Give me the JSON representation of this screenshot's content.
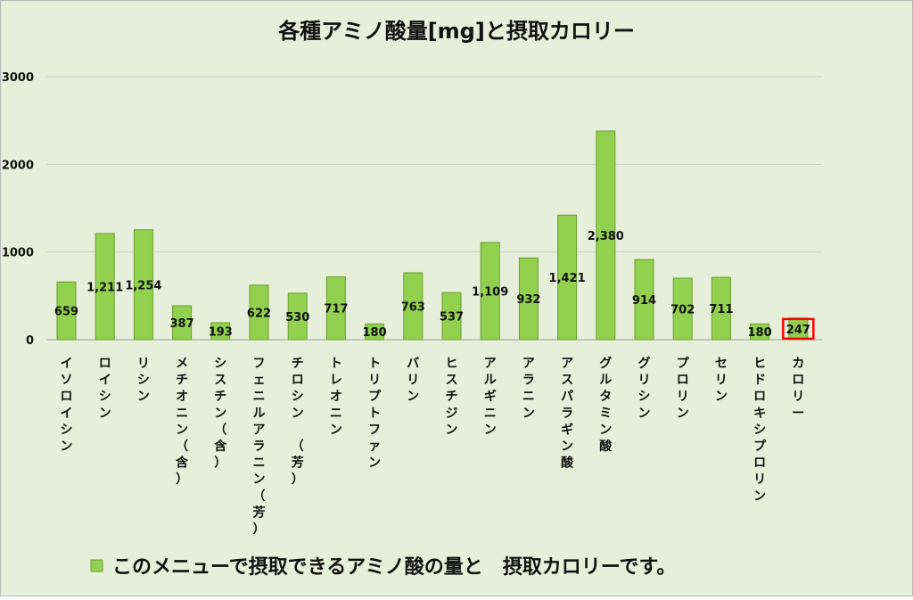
{
  "chart_data": {
    "type": "bar",
    "title": "各種アミノ酸量[mg]と摂取カロリー",
    "categories": [
      "イソロイシン",
      "ロイシン",
      "リシン",
      "メチオニン（含）",
      "シスチン（含）",
      "フェニルアラニン（芳）",
      "チロシン　（芳）",
      "トレオニン",
      "トリプトファン",
      "バリン",
      "ヒスチジン",
      "アルギニン",
      "アラニン",
      "アスパラギン酸",
      "グルタミン酸",
      "グリシン",
      "プロリン",
      "セリン",
      "ヒドロキシプロリン",
      "カロリー"
    ],
    "values": [
      659,
      1211,
      1254,
      387,
      193,
      622,
      530,
      717,
      180,
      763,
      537,
      1109,
      932,
      1421,
      2380,
      914,
      702,
      711,
      180,
      247
    ],
    "data_labels": [
      "659",
      "1,211",
      "1,254",
      "387",
      "193",
      "622",
      "530",
      "717",
      "180",
      "763",
      "537",
      "1,109",
      "932",
      "1,421",
      "2,380",
      "914",
      "702",
      "711",
      "180",
      "247"
    ],
    "y_ticks": [
      "0",
      "1000",
      "2000",
      "3000"
    ],
    "ylim": [
      0,
      3000
    ],
    "grid": true,
    "legend_placement": "bottom",
    "legend_label": "このメニューで摂取できるアミノ酸の量と　摂取カロリーです。",
    "highlighted_label": "247",
    "colors": {
      "bar_fill": "#92d050",
      "bar_stroke": "#6a9e2e",
      "background": "#e6efd9",
      "highlight_box": "#ff0000",
      "gridline": "#c9ceca"
    }
  }
}
